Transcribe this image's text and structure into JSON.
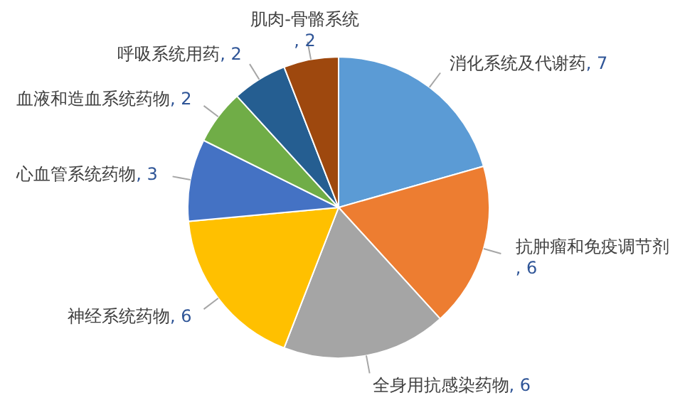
{
  "chart_data": {
    "type": "pie",
    "categories": [
      "消化系统及代谢药",
      "抗肿瘤和免疫调节剂",
      "全身用抗感染药物",
      "神经系统药物",
      "心血管系统药物",
      "血液和造血系统药物",
      "呼吸系统用药",
      "肌肉-骨骼系统"
    ],
    "values": [
      7,
      6,
      6,
      6,
      3,
      2,
      2,
      2
    ],
    "colors": [
      "#5b9bd5",
      "#ed7d31",
      "#a5a5a5",
      "#ffc000",
      "#4472c4",
      "#70ad47",
      "#255e91",
      "#9e480e"
    ],
    "value_labels": [
      ", 7",
      ", 6",
      ", 6",
      ", 6",
      ", 3",
      ", 2",
      ", 2",
      ", 2"
    ]
  }
}
